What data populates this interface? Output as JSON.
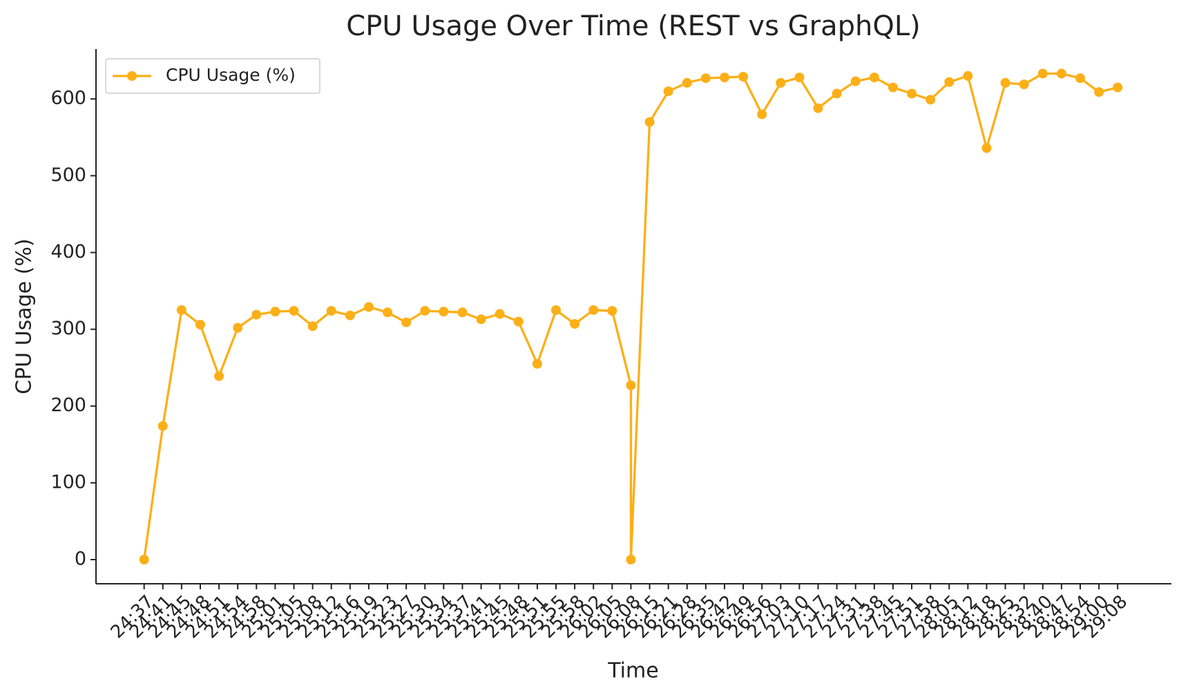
{
  "chart_data": {
    "type": "line",
    "title": "CPU Usage Over Time (REST vs GraphQL)",
    "xlabel": "Time",
    "ylabel": "CPU Usage (%)",
    "categories": [
      "24:37",
      "24:41",
      "24:45",
      "24:48",
      "24:51",
      "24:54",
      "24:58",
      "25:01",
      "25:05",
      "25:08",
      "25:12",
      "25:16",
      "25:19",
      "25:23",
      "25:27",
      "25:30",
      "25:34",
      "25:37",
      "25:41",
      "25:45",
      "25:48",
      "25:51",
      "25:55",
      "25:58",
      "26:02",
      "26:05",
      "26:08",
      "26:08",
      "26:15",
      "26:21",
      "26:28",
      "26:35",
      "26:42",
      "26:49",
      "26:56",
      "27:03",
      "27:10",
      "27:17",
      "27:24",
      "27:31",
      "27:38",
      "27:45",
      "27:51",
      "27:58",
      "28:05",
      "28:12",
      "28:18",
      "28:25",
      "28:32",
      "28:40",
      "28:47",
      "28:54",
      "29:00",
      "29:08"
    ],
    "series": [
      {
        "name": "CPU Usage (%)",
        "color": "#fcaf17",
        "values": [
          0,
          174,
          325,
          306,
          239,
          302,
          319,
          323,
          324,
          304,
          324,
          318,
          329,
          322,
          309,
          324,
          323,
          322,
          313,
          320,
          310,
          255,
          325,
          307,
          325,
          324,
          227,
          0,
          570,
          610,
          621,
          627,
          628,
          629,
          580,
          621,
          628,
          588,
          607,
          623,
          628,
          615,
          607,
          599,
          622,
          630,
          536,
          621,
          619,
          633,
          633,
          627,
          609,
          615
        ]
      }
    ],
    "ylim": [
      -31.5,
      665
    ],
    "yticks": [
      0,
      100,
      200,
      300,
      400,
      500,
      600
    ],
    "grid": false,
    "legend": "upper left"
  }
}
